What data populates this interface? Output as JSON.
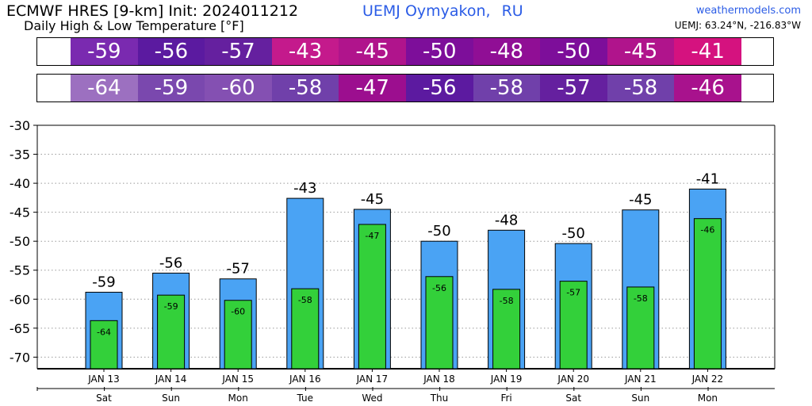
{
  "header": {
    "title": "ECMWF HRES [9-km] Init: 2024011212",
    "subtitle": "Daily High & Low Temperature [°F]",
    "station_code": "UEMJ Oymyakon,",
    "country": "RU",
    "site": "weathermodels.com",
    "coords": "UEMJ: 63.24°N, -216.83°W"
  },
  "colors": {
    "high_bar": "#4aa3f4",
    "low_bar": "#33d03a",
    "grid": "#999999"
  },
  "high_band": [
    {
      "label": "-59",
      "color": "#7a2ab0"
    },
    {
      "label": "-56",
      "color": "#5b1aa0"
    },
    {
      "label": "-57",
      "color": "#65209f"
    },
    {
      "label": "-43",
      "color": "#c41a8c"
    },
    {
      "label": "-45",
      "color": "#b0148c"
    },
    {
      "label": "-50",
      "color": "#7d0e9a"
    },
    {
      "label": "-48",
      "color": "#900e95"
    },
    {
      "label": "-50",
      "color": "#7d0e9a"
    },
    {
      "label": "-45",
      "color": "#b0148c"
    },
    {
      "label": "-41",
      "color": "#d5127f"
    }
  ],
  "low_band": [
    {
      "label": "-64",
      "color": "#9c70c0"
    },
    {
      "label": "-59",
      "color": "#7a48ae"
    },
    {
      "label": "-60",
      "color": "#8450b2"
    },
    {
      "label": "-58",
      "color": "#7040aa"
    },
    {
      "label": "-47",
      "color": "#9c0e8f"
    },
    {
      "label": "-56",
      "color": "#5c1aa0"
    },
    {
      "label": "-58",
      "color": "#7040aa"
    },
    {
      "label": "-57",
      "color": "#65209f"
    },
    {
      "label": "-58",
      "color": "#7040aa"
    },
    {
      "label": "-46",
      "color": "#a8128d"
    }
  ],
  "chart_data": {
    "type": "bar",
    "categories": [
      "JAN 13",
      "JAN 14",
      "JAN 15",
      "JAN 16",
      "JAN 17",
      "JAN 18",
      "JAN 19",
      "JAN 20",
      "JAN 21",
      "JAN 22"
    ],
    "weekdays": [
      "Sat",
      "Sun",
      "Mon",
      "Tue",
      "Wed",
      "Thu",
      "Fri",
      "Sat",
      "Sun",
      "Mon"
    ],
    "series": [
      {
        "values": [
          -58.8,
          -55.5,
          -56.5,
          -42.6,
          -44.5,
          -50.0,
          -48.1,
          -50.4,
          -44.6,
          -41.0
        ],
        "labels": [
          "-59",
          "-56",
          "-57",
          "-43",
          "-45",
          "-50",
          "-48",
          "-50",
          "-45",
          "-41"
        ]
      },
      {
        "values": [
          -63.7,
          -59.3,
          -60.2,
          -58.2,
          -47.1,
          -56.1,
          -58.3,
          -56.9,
          -57.9,
          -46.1
        ],
        "labels": [
          "-64",
          "-59",
          "-60",
          "-58",
          "-47",
          "-56",
          "-58",
          "-57",
          "-58",
          "-46"
        ]
      }
    ],
    "y_ticks": [
      -30,
      -35,
      -40,
      -45,
      -50,
      -55,
      -60,
      -65,
      -70
    ],
    "ylim": [
      -72,
      -30
    ],
    "grid": true
  }
}
